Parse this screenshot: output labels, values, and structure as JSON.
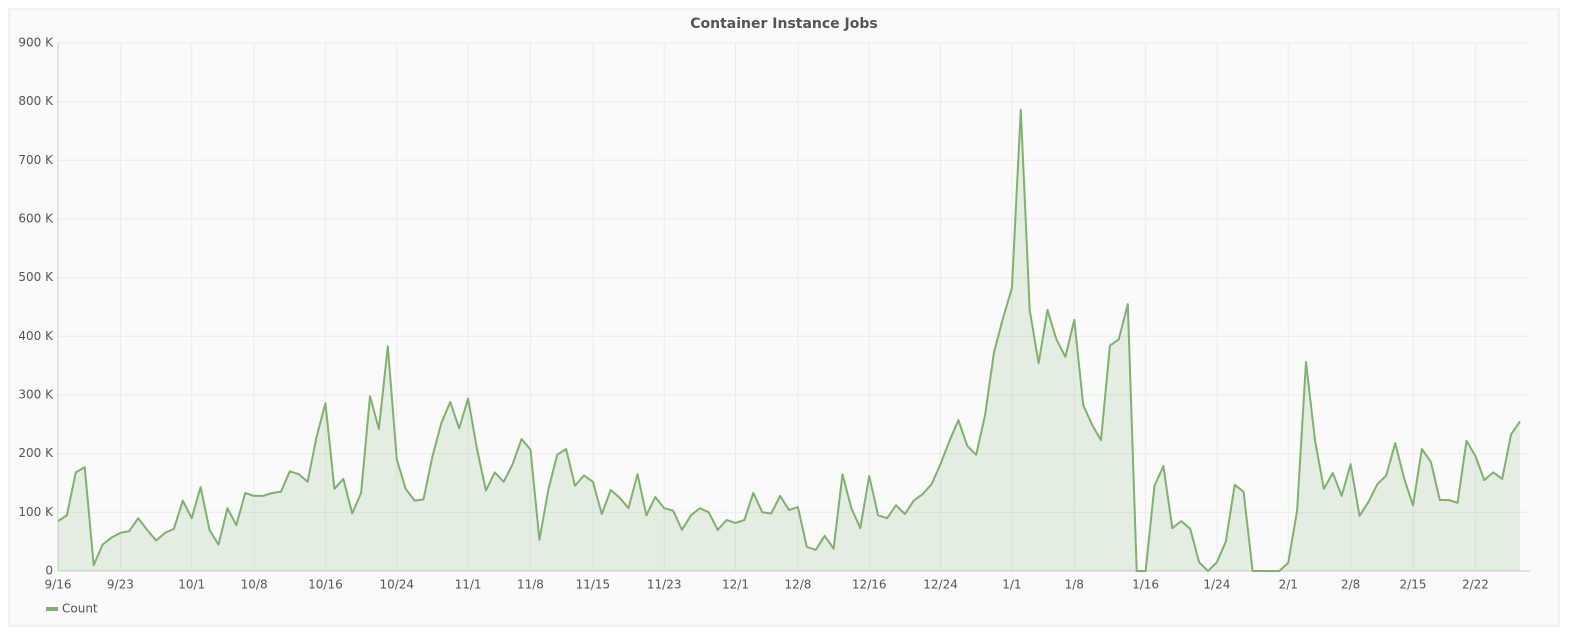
{
  "chart_data": {
    "type": "line",
    "title": "Container Instance Jobs",
    "categories": [
      "9/16",
      "9/17",
      "9/18",
      "9/19",
      "9/20",
      "9/21",
      "9/22",
      "9/23",
      "9/24",
      "9/25",
      "9/26",
      "9/27",
      "9/28",
      "9/29",
      "9/30",
      "10/1",
      "10/2",
      "10/3",
      "10/4",
      "10/5",
      "10/6",
      "10/7",
      "10/8",
      "10/9",
      "10/10",
      "10/11",
      "10/12",
      "10/13",
      "10/14",
      "10/15",
      "10/16",
      "10/17",
      "10/18",
      "10/19",
      "10/20",
      "10/21",
      "10/22",
      "10/23",
      "10/24",
      "10/25",
      "10/26",
      "10/27",
      "10/28",
      "10/29",
      "10/30",
      "10/31",
      "11/1",
      "11/2",
      "11/3",
      "11/4",
      "11/5",
      "11/6",
      "11/7",
      "11/8",
      "11/9",
      "11/10",
      "11/11",
      "11/12",
      "11/13",
      "11/14",
      "11/15",
      "11/16",
      "11/17",
      "11/18",
      "11/19",
      "11/20",
      "11/21",
      "11/22",
      "11/23",
      "11/24",
      "11/25",
      "11/26",
      "11/27",
      "11/28",
      "11/29",
      "11/30",
      "12/1",
      "12/2",
      "12/3",
      "12/4",
      "12/5",
      "12/6",
      "12/7",
      "12/8",
      "12/9",
      "12/10",
      "12/11",
      "12/12",
      "12/13",
      "12/14",
      "12/15",
      "12/16",
      "12/17",
      "12/18",
      "12/19",
      "12/20",
      "12/21",
      "12/22",
      "12/23",
      "12/24",
      "12/25",
      "12/26",
      "12/27",
      "12/28",
      "12/29",
      "12/30",
      "12/31",
      "1/1",
      "1/2",
      "1/3",
      "1/4",
      "1/5",
      "1/6",
      "1/7",
      "1/8",
      "1/9",
      "1/10",
      "1/11",
      "1/12",
      "1/13",
      "1/14",
      "1/15",
      "1/16",
      "1/17",
      "1/18",
      "1/19",
      "1/20",
      "1/21",
      "1/22",
      "1/23",
      "1/24",
      "1/25",
      "1/26",
      "1/27",
      "1/28",
      "1/29",
      "1/30",
      "1/31",
      "2/1",
      "2/2",
      "2/3",
      "2/4",
      "2/5",
      "2/6",
      "2/7",
      "2/8",
      "2/9",
      "2/10",
      "2/11",
      "2/12",
      "2/13",
      "2/14",
      "2/15",
      "2/16",
      "2/17",
      "2/18",
      "2/19",
      "2/20",
      "2/21",
      "2/22",
      "2/23",
      "2/24",
      "2/25",
      "2/26",
      "2/27"
    ],
    "series": [
      {
        "name": "Count",
        "color": "#7eb26d",
        "values": [
          85000,
          95000,
          168000,
          177000,
          10000,
          45000,
          57000,
          65000,
          68000,
          90000,
          70000,
          52000,
          65000,
          72000,
          120000,
          90000,
          143000,
          70000,
          45000,
          107000,
          78000,
          133000,
          128000,
          128000,
          133000,
          135000,
          170000,
          165000,
          152000,
          228000,
          286000,
          140000,
          157000,
          98000,
          133000,
          298000,
          242000,
          383000,
          190000,
          140000,
          120000,
          122000,
          195000,
          252000,
          288000,
          243000,
          294000,
          208000,
          137000,
          168000,
          152000,
          182000,
          225000,
          207000,
          53000,
          138000,
          198000,
          208000,
          145000,
          163000,
          152000,
          97000,
          138000,
          125000,
          107000,
          165000,
          95000,
          126000,
          107000,
          103000,
          70000,
          95000,
          107000,
          100000,
          70000,
          87000,
          82000,
          87000,
          133000,
          100000,
          98000,
          128000,
          104000,
          109000,
          41000,
          36000,
          60000,
          38000,
          165000,
          107000,
          73000,
          162000,
          95000,
          90000,
          112000,
          97000,
          120000,
          131000,
          148000,
          182000,
          222000,
          257000,
          213000,
          198000,
          266000,
          373000,
          431000,
          482000,
          786000,
          445000,
          354000,
          445000,
          395000,
          365000,
          428000,
          283000,
          249000,
          223000,
          384000,
          395000,
          455000,
          0,
          0,
          145000,
          179000,
          73000,
          85000,
          72000,
          15000,
          0,
          15000,
          50000,
          147000,
          135000,
          0,
          0,
          0,
          0,
          14000,
          103000,
          356000,
          223000,
          140000,
          167000,
          128000,
          182000,
          94000,
          118000,
          148000,
          163000,
          218000,
          158000,
          112000,
          208000,
          186000,
          121000,
          121000,
          116000,
          222000,
          196000,
          155000,
          168000,
          157000,
          233000,
          255000
        ]
      }
    ],
    "ylim": [
      0,
      900000
    ],
    "yticks": [
      0,
      {
        "value": 100000,
        "label": "100 K"
      },
      {
        "value": 200000,
        "label": "200 K"
      },
      {
        "value": 300000,
        "label": "300 K"
      },
      {
        "value": 400000,
        "label": "400 K"
      },
      {
        "value": 500000,
        "label": "500 K"
      },
      {
        "value": 600000,
        "label": "600 K"
      },
      {
        "value": 700000,
        "label": "700 K"
      },
      {
        "value": 800000,
        "label": "800 K"
      },
      {
        "value": 900000,
        "label": "900 K"
      }
    ],
    "xticks": [
      "9/16",
      "9/23",
      "10/1",
      "10/8",
      "10/16",
      "10/24",
      "11/1",
      "11/8",
      "11/15",
      "11/23",
      "12/1",
      "12/8",
      "12/16",
      "12/24",
      "1/1",
      "1/8",
      "1/16",
      "1/24",
      "2/1",
      "2/8",
      "2/15",
      "2/22"
    ],
    "grid": true,
    "legend": "bottom-left"
  }
}
